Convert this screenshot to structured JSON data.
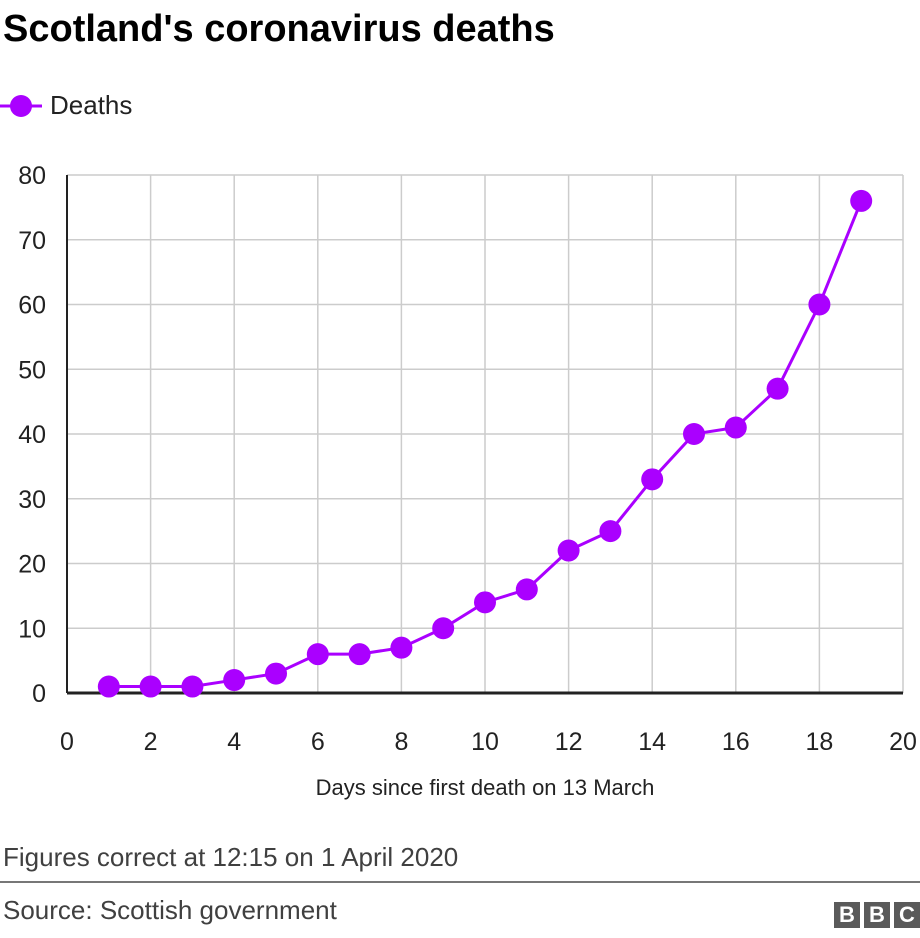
{
  "title": "Scotland's coronavirus deaths",
  "note": "Figures correct at 12:15 on 1 April 2020",
  "source": "Source: Scottish government",
  "logo": "BBC",
  "chart_data": {
    "type": "line",
    "title": "Scotland's coronavirus deaths",
    "xlabel": "Days since first death on 13 March",
    "ylabel": "",
    "xlim": [
      0,
      20
    ],
    "ylim": [
      0,
      80
    ],
    "xticks": [
      0,
      2,
      4,
      6,
      8,
      10,
      12,
      14,
      16,
      18,
      20
    ],
    "yticks": [
      0,
      10,
      20,
      30,
      40,
      50,
      60,
      70,
      80
    ],
    "grid": true,
    "legend": "top-left",
    "series": [
      {
        "name": "Deaths",
        "color": "#aa00ff",
        "x": [
          1,
          2,
          3,
          4,
          5,
          6,
          7,
          8,
          9,
          10,
          11,
          12,
          13,
          14,
          15,
          16,
          17,
          18,
          19
        ],
        "values": [
          1,
          1,
          1,
          2,
          3,
          6,
          6,
          7,
          10,
          14,
          16,
          22,
          25,
          33,
          40,
          41,
          47,
          60,
          76
        ]
      }
    ]
  }
}
